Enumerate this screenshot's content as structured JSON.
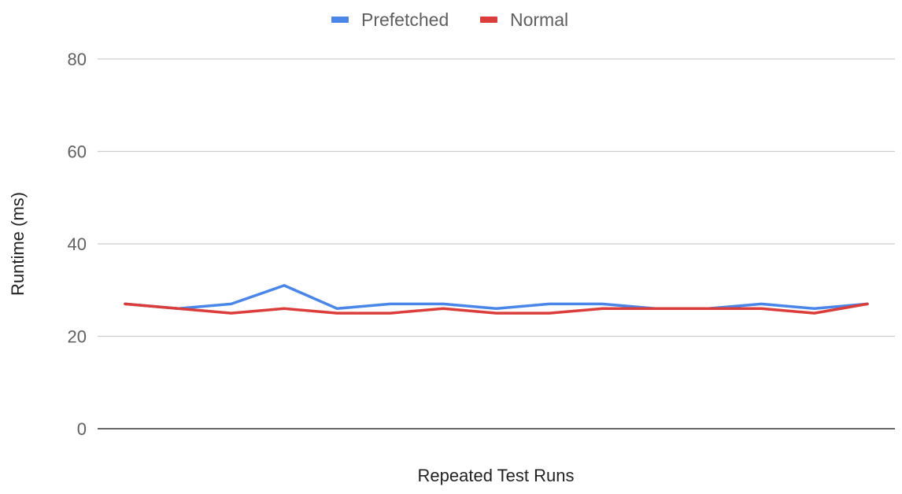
{
  "chart_data": {
    "type": "line",
    "title": "",
    "xlabel": "Repeated Test Runs",
    "ylabel": "Runtime (ms)",
    "ylim": [
      0,
      80
    ],
    "yticks": [
      0,
      20,
      40,
      60,
      80
    ],
    "grid": true,
    "legend": "top-center",
    "x": [
      1,
      2,
      3,
      4,
      5,
      6,
      7,
      8,
      9,
      10,
      11,
      12,
      13,
      14,
      15
    ],
    "series": [
      {
        "name": "Prefetched",
        "color": "#4a86e8",
        "values": [
          27,
          26,
          27,
          31,
          26,
          27,
          27,
          26,
          27,
          27,
          26,
          26,
          27,
          26,
          27
        ]
      },
      {
        "name": "Normal",
        "color": "#db3e3a",
        "values": [
          27,
          26,
          25,
          26,
          25,
          25,
          26,
          25,
          25,
          26,
          26,
          26,
          26,
          25,
          27
        ]
      }
    ]
  }
}
